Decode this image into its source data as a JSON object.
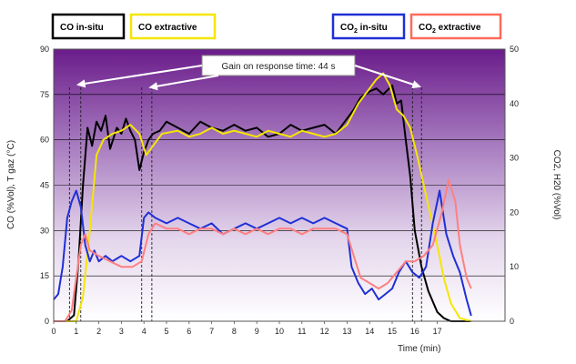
{
  "chart_data": {
    "type": "line",
    "xlabel": "Time (min)",
    "ylabel_left": "CO (%Vol), T gaz (°C)",
    "ylabel_right": "CO2, H20 (%Vol)",
    "xlim": [
      0,
      20
    ],
    "ylim_left": [
      0,
      90
    ],
    "ylim_right": [
      0,
      50
    ],
    "x_ticks": [
      "0",
      "1",
      "2",
      "3",
      "4",
      "5",
      "6",
      "7",
      "8",
      "9",
      "10",
      "11",
      "12",
      "13",
      "14",
      "15",
      "16",
      "17"
    ],
    "y_left_ticks": [
      "0",
      "15",
      "30",
      "45",
      "60",
      "75",
      "90"
    ],
    "y_right_ticks": [
      "0",
      "10",
      "20",
      "30",
      "40",
      "50"
    ],
    "legend": [
      {
        "label": "CO in-situ",
        "sub": "",
        "color": "#000000",
        "pos": "top-left"
      },
      {
        "label": "CO extractive",
        "sub": "",
        "color": "#f5e600",
        "pos": "top-left"
      },
      {
        "label": "CO in-situ",
        "sub": "2",
        "prefix": "CO",
        "rest": " in-situ",
        "color": "#1f2fd6",
        "pos": "top-right"
      },
      {
        "label": "CO extractive",
        "sub": "2",
        "prefix": "CO",
        "rest": " extractive",
        "color": "#ff8080",
        "pos": "top-right"
      }
    ],
    "annotation": "Gain on response time: 44 s",
    "vlines_min": [
      0.7,
      1.2,
      3.9,
      4.35,
      15.9,
      16.3
    ],
    "series": [
      {
        "name": "CO in-situ",
        "axis": "left",
        "color": "#000000",
        "x": [
          0,
          0.6,
          0.9,
          1.1,
          1.3,
          1.5,
          1.7,
          1.9,
          2.1,
          2.3,
          2.5,
          2.8,
          3.0,
          3.2,
          3.4,
          3.6,
          3.8,
          4.0,
          4.2,
          4.4,
          4.7,
          5.0,
          5.5,
          6.0,
          6.5,
          7.0,
          7.5,
          8.0,
          8.5,
          9.0,
          9.5,
          10.0,
          10.5,
          11.0,
          11.5,
          12.0,
          12.5,
          13.0,
          13.3,
          13.6,
          14.0,
          14.3,
          14.6,
          15.0,
          15.2,
          15.4,
          15.6,
          15.8,
          16.0,
          16.3,
          16.6,
          17.0,
          17.3,
          17.6,
          18.0,
          18.5
        ],
        "y": [
          0,
          0,
          2,
          20,
          45,
          64,
          58,
          66,
          63,
          68,
          57,
          64,
          62,
          67,
          63,
          60,
          50,
          56,
          60,
          62,
          63,
          66,
          64,
          62,
          66,
          64,
          63,
          65,
          63,
          64,
          61,
          62,
          65,
          63,
          64,
          65,
          62,
          67,
          70,
          74,
          76,
          77,
          75,
          78,
          72,
          73,
          60,
          48,
          30,
          18,
          10,
          3,
          1,
          0,
          0,
          0
        ]
      },
      {
        "name": "CO extractive",
        "axis": "left",
        "color": "#f5e600",
        "x": [
          0,
          1.0,
          1.3,
          1.6,
          1.9,
          2.2,
          2.6,
          3.0,
          3.4,
          3.8,
          4.1,
          4.4,
          4.8,
          5.5,
          6.0,
          6.5,
          7.0,
          7.5,
          8.0,
          8.5,
          9.0,
          9.5,
          10.0,
          10.5,
          11.0,
          11.5,
          12.0,
          12.5,
          13.0,
          13.5,
          14.0,
          14.3,
          14.6,
          14.9,
          15.2,
          15.5,
          15.8,
          16.1,
          16.4,
          16.7,
          17.0,
          17.3,
          17.6,
          18.0,
          18.5
        ],
        "y": [
          0,
          0,
          8,
          30,
          55,
          60,
          62,
          63,
          65,
          62,
          55,
          58,
          62,
          63,
          61,
          62,
          64,
          62,
          63,
          62,
          61,
          63,
          62,
          61,
          63,
          62,
          61,
          62,
          65,
          72,
          77,
          80,
          82,
          78,
          70,
          68,
          64,
          55,
          45,
          35,
          25,
          14,
          6,
          1,
          0
        ]
      },
      {
        "name": "CO2 in-situ",
        "axis": "right",
        "color": "#1f2fd6",
        "x": [
          0,
          0.2,
          0.4,
          0.6,
          0.8,
          1.0,
          1.2,
          1.4,
          1.6,
          1.8,
          2.0,
          2.3,
          2.6,
          3.0,
          3.4,
          3.8,
          4.0,
          4.2,
          4.5,
          5.0,
          5.5,
          6.0,
          6.5,
          7.0,
          7.5,
          8.0,
          8.5,
          9.0,
          9.5,
          10.0,
          10.5,
          11.0,
          11.5,
          12.0,
          12.5,
          13.0,
          13.2,
          13.5,
          13.8,
          14.1,
          14.4,
          14.7,
          15.0,
          15.3,
          15.6,
          15.9,
          16.2,
          16.5,
          16.8,
          17.1,
          17.4,
          17.7,
          18.0,
          18.3,
          18.5
        ],
        "y": [
          4,
          5,
          10,
          19,
          22,
          24,
          21,
          14,
          11,
          13,
          11,
          12,
          11,
          12,
          11,
          12,
          19,
          20,
          19,
          18,
          19,
          18,
          17,
          18,
          16,
          17,
          18,
          17,
          18,
          19,
          18,
          19,
          18,
          19,
          18,
          17,
          10,
          7,
          5,
          6,
          4,
          5,
          6,
          9,
          11,
          9,
          8,
          10,
          18,
          24,
          16,
          12,
          9,
          4,
          1
        ]
      },
      {
        "name": "CO2 extractive",
        "axis": "right",
        "color": "#ff8080",
        "x": [
          0,
          0.5,
          0.8,
          1.0,
          1.2,
          1.4,
          1.6,
          2.0,
          2.5,
          3.0,
          3.5,
          3.9,
          4.2,
          4.5,
          5.0,
          5.5,
          6.0,
          6.5,
          7.0,
          7.5,
          8.0,
          8.5,
          9.0,
          9.5,
          10.0,
          10.5,
          11.0,
          11.5,
          12.0,
          12.5,
          13.0,
          13.3,
          13.6,
          14.0,
          14.4,
          14.8,
          15.2,
          15.6,
          16.0,
          16.4,
          16.8,
          17.2,
          17.5,
          17.8,
          18.0,
          18.3,
          18.5
        ],
        "y": [
          0,
          0,
          2,
          8,
          14,
          16,
          13,
          12,
          11,
          10,
          10,
          11,
          16,
          18,
          17,
          17,
          16,
          17,
          17,
          16,
          17,
          16,
          17,
          16,
          17,
          17,
          16,
          17,
          17,
          17,
          16,
          12,
          8,
          7,
          6,
          7,
          9,
          11,
          11,
          12,
          14,
          20,
          26,
          22,
          14,
          8,
          6
        ]
      }
    ]
  }
}
